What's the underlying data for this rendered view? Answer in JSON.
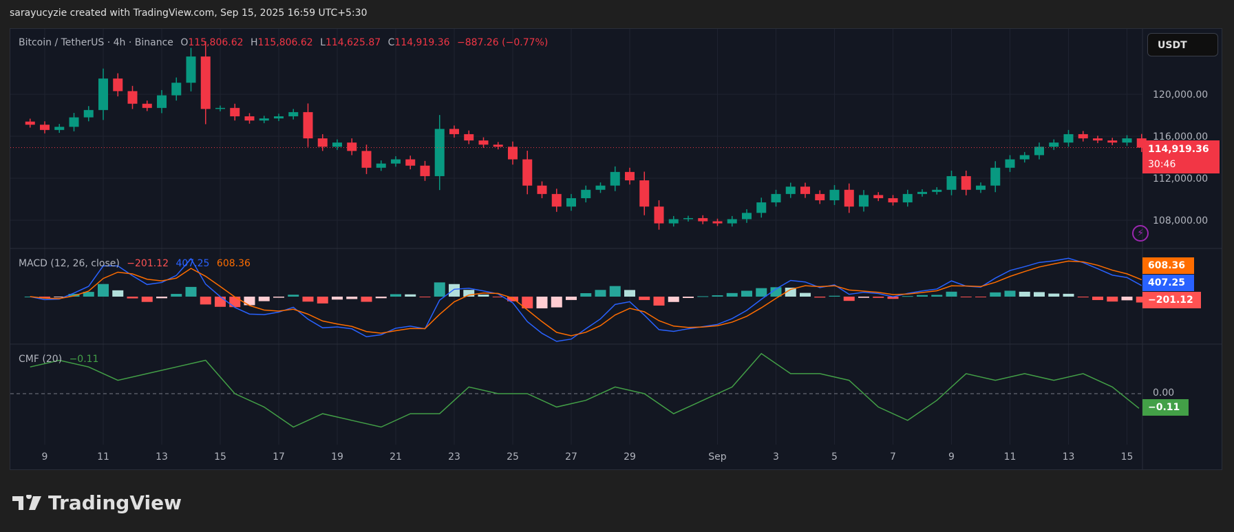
{
  "watermark": "sarayucyzie created with TradingView.com, Sep 15, 2025 16:59 UTC+5:30",
  "symbol": {
    "name": "Bitcoin / TetherUS · 4h · Binance",
    "o_label": "O",
    "o": "115,806.62",
    "h_label": "H",
    "h": "115,806.62",
    "l_label": "L",
    "l": "114,625.87",
    "c_label": "C",
    "c": "114,919.36",
    "change": "−887.26 (−0.77%)"
  },
  "currency_button": "USDT",
  "price_tag": {
    "price": "114,919.36",
    "countdown": "30:46"
  },
  "colors": {
    "up": "#089981",
    "down": "#f23645",
    "macd": "#2962ff",
    "signal": "#ff6d00",
    "hist_up": "#26a69a",
    "hist_up_light": "#b2dfdb",
    "hist_down": "#ff5252",
    "hist_down_light": "#ffcdd2",
    "cmf": "#43a047"
  },
  "macd_legend": {
    "title": "MACD (12, 26, close)",
    "hist": "−201.12",
    "macd": "407.25",
    "signal": "608.36"
  },
  "cmf_legend": {
    "title": "CMF (20)",
    "value": "−0.11"
  },
  "cmf_zero": "0.00",
  "brand": "TradingView",
  "chart_data": [
    {
      "type": "candlestick",
      "interval_shown": "4h",
      "start": "2025-08-08T12:00",
      "step_hours": 12,
      "close": [
        117100,
        116600,
        116900,
        117800,
        118500,
        121500,
        120300,
        119100,
        118700,
        119900,
        121100,
        123600,
        118600,
        118700,
        117900,
        117500,
        117700,
        117900,
        118300,
        115800,
        115000,
        115400,
        114600,
        113000,
        113400,
        113800,
        113200,
        112200,
        116700,
        116200,
        115600,
        115200,
        115000,
        113800,
        111300,
        110500,
        109300,
        110100,
        110900,
        111300,
        112600,
        111800,
        109300,
        107700,
        108100,
        108200,
        107900,
        107700,
        108100,
        108700,
        109700,
        110500,
        111200,
        110500,
        109900,
        110900,
        109300,
        110400,
        110100,
        109700,
        110500,
        110700,
        110900,
        112200,
        110900,
        111300,
        113000,
        113800,
        114200,
        115000,
        115400,
        116200,
        115800,
        115600,
        115400,
        115800,
        114919.36
      ],
      "yticks": [
        "120,000.00",
        "116,000.00",
        "112,000.00",
        "108,000.00"
      ],
      "ytick_values": [
        120000,
        116000,
        112000,
        108000
      ],
      "last_price": 114919.36
    },
    {
      "type": "line",
      "name": "MACD (12, 26, close)",
      "fast": 12,
      "slow": 26,
      "signal_len": 9,
      "last": {
        "macd": 407.25,
        "signal": 608.36,
        "hist": -201.12
      }
    },
    {
      "type": "line",
      "name": "CMF (20)",
      "start": "2025-08-08T12:00",
      "step_hours": 24,
      "values": [
        0.2,
        0.25,
        0.2,
        0.1,
        0.15,
        0.2,
        0.25,
        0.0,
        -0.1,
        -0.25,
        -0.15,
        -0.2,
        -0.25,
        -0.15,
        -0.15,
        0.05,
        0.0,
        0.0,
        -0.1,
        -0.05,
        0.05,
        0.0,
        -0.15,
        -0.05,
        0.05,
        0.3,
        0.15,
        0.15,
        0.1,
        -0.1,
        -0.2,
        -0.05,
        0.15,
        0.1,
        0.15,
        0.1,
        0.15,
        0.05,
        -0.11
      ],
      "zero_line": 0
    }
  ],
  "time_axis": [
    {
      "date": "2025-08-09",
      "label": "9"
    },
    {
      "date": "2025-08-11",
      "label": "11"
    },
    {
      "date": "2025-08-13",
      "label": "13"
    },
    {
      "date": "2025-08-15",
      "label": "15"
    },
    {
      "date": "2025-08-17",
      "label": "17"
    },
    {
      "date": "2025-08-19",
      "label": "19"
    },
    {
      "date": "2025-08-21",
      "label": "21"
    },
    {
      "date": "2025-08-23",
      "label": "23"
    },
    {
      "date": "2025-08-25",
      "label": "25"
    },
    {
      "date": "2025-08-27",
      "label": "27"
    },
    {
      "date": "2025-08-29",
      "label": "29"
    },
    {
      "date": "2025-09-01",
      "label": "Sep"
    },
    {
      "date": "2025-09-03",
      "label": "3"
    },
    {
      "date": "2025-09-05",
      "label": "5"
    },
    {
      "date": "2025-09-07",
      "label": "7"
    },
    {
      "date": "2025-09-09",
      "label": "9"
    },
    {
      "date": "2025-09-11",
      "label": "11"
    },
    {
      "date": "2025-09-13",
      "label": "13"
    },
    {
      "date": "2025-09-15",
      "label": "15"
    }
  ]
}
